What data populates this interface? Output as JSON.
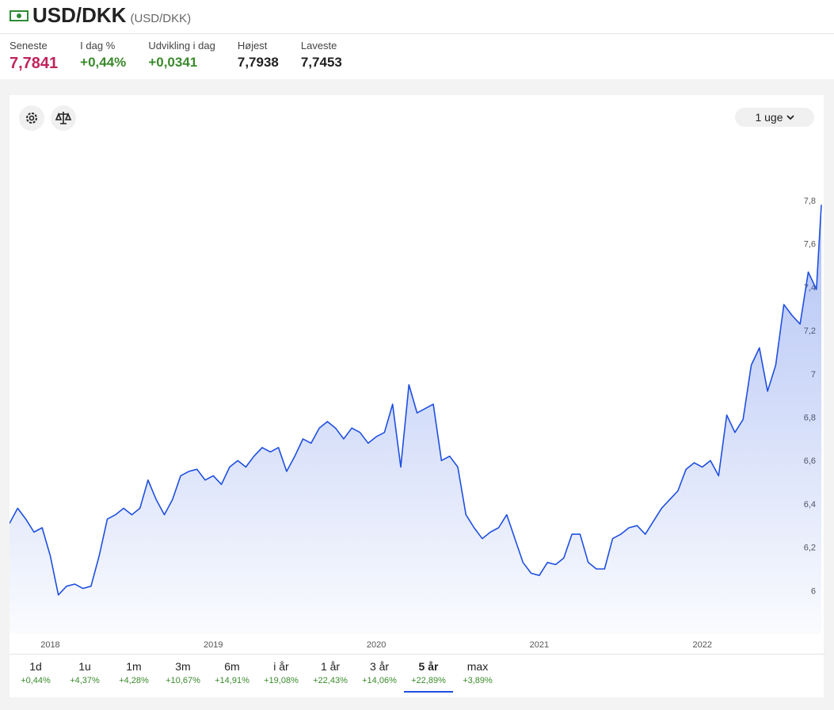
{
  "header": {
    "title": "USD/DKK",
    "subtitle": "(USD/DKK)"
  },
  "stats": [
    {
      "label": "Seneste",
      "value": "7,7841"
    },
    {
      "label": "I dag %",
      "value": "+0,44%"
    },
    {
      "label": "Udvikling i dag",
      "value": "+0,0341"
    },
    {
      "label": "Højest",
      "value": "7,7938"
    },
    {
      "label": "Laveste",
      "value": "7,7453"
    }
  ],
  "range_button": "1 uge",
  "chart_data": {
    "type": "line",
    "color": "#1f4fe0",
    "x": [
      2017.75,
      2017.8,
      2017.85,
      2017.9,
      2017.95,
      2018,
      2018.05,
      2018.1,
      2018.15,
      2018.2,
      2018.25,
      2018.3,
      2018.35,
      2018.4,
      2018.45,
      2018.5,
      2018.55,
      2018.6,
      2018.65,
      2018.7,
      2018.75,
      2018.8,
      2018.85,
      2018.9,
      2018.95,
      2019,
      2019.05,
      2019.1,
      2019.15,
      2019.2,
      2019.25,
      2019.3,
      2019.35,
      2019.4,
      2019.45,
      2019.5,
      2019.55,
      2019.6,
      2019.65,
      2019.7,
      2019.75,
      2019.8,
      2019.85,
      2019.9,
      2019.95,
      2020,
      2020.05,
      2020.1,
      2020.15,
      2020.2,
      2020.25,
      2020.3,
      2020.35,
      2020.4,
      2020.45,
      2020.5,
      2020.55,
      2020.6,
      2020.65,
      2020.7,
      2020.75,
      2020.8,
      2020.85,
      2020.9,
      2020.95,
      2021,
      2021.05,
      2021.1,
      2021.15,
      2021.2,
      2021.25,
      2021.3,
      2021.35,
      2021.4,
      2021.45,
      2021.5,
      2021.55,
      2021.6,
      2021.65,
      2021.7,
      2021.75,
      2021.8,
      2021.85,
      2021.9,
      2021.95,
      2022,
      2022.05,
      2022.1,
      2022.15,
      2022.2,
      2022.25,
      2022.3,
      2022.35,
      2022.4,
      2022.45,
      2022.5,
      2022.55,
      2022.6,
      2022.65,
      2022.7,
      2022.73
    ],
    "values": [
      6.31,
      6.38,
      6.33,
      6.27,
      6.29,
      6.16,
      5.98,
      6.02,
      6.03,
      6.01,
      6.02,
      6.16,
      6.33,
      6.35,
      6.38,
      6.35,
      6.38,
      6.51,
      6.42,
      6.35,
      6.42,
      6.53,
      6.55,
      6.56,
      6.51,
      6.53,
      6.49,
      6.57,
      6.6,
      6.57,
      6.62,
      6.66,
      6.64,
      6.66,
      6.55,
      6.62,
      6.7,
      6.68,
      6.75,
      6.78,
      6.75,
      6.7,
      6.75,
      6.73,
      6.68,
      6.71,
      6.73,
      6.86,
      6.57,
      6.95,
      6.82,
      6.84,
      6.86,
      6.6,
      6.62,
      6.57,
      6.35,
      6.29,
      6.24,
      6.27,
      6.29,
      6.35,
      6.24,
      6.13,
      6.08,
      6.07,
      6.13,
      6.12,
      6.15,
      6.26,
      6.26,
      6.13,
      6.1,
      6.1,
      6.24,
      6.26,
      6.29,
      6.3,
      6.26,
      6.32,
      6.38,
      6.42,
      6.46,
      6.56,
      6.59,
      6.57,
      6.6,
      6.53,
      6.81,
      6.73,
      6.79,
      7.04,
      7.12,
      6.92,
      7.04,
      7.32,
      7.27,
      7.23,
      7.47,
      7.39,
      7.78
    ],
    "xlim": [
      2017.75,
      2022.73
    ],
    "xticks": [
      2018,
      2019,
      2020,
      2021,
      2022
    ],
    "ylim": [
      5.8,
      8.1
    ],
    "yticks": [
      6,
      {
        "value": 6.2,
        "label": "6,2"
      },
      {
        "value": 6.4,
        "label": "6,4"
      },
      {
        "value": 6.6,
        "label": "6,6"
      },
      {
        "value": 6.8,
        "label": "6,8"
      },
      7,
      {
        "value": 7.2,
        "label": "7,2"
      },
      {
        "value": 7.4,
        "label": "7,4"
      },
      {
        "value": 7.6,
        "label": "7,6"
      },
      {
        "value": 7.8,
        "label": "7,8"
      }
    ]
  },
  "periods": [
    {
      "label": "1d",
      "change": "+0,44%"
    },
    {
      "label": "1u",
      "change": "+4,37%"
    },
    {
      "label": "1m",
      "change": "+4,28%"
    },
    {
      "label": "3m",
      "change": "+10,67%"
    },
    {
      "label": "6m",
      "change": "+14,91%"
    },
    {
      "label": "i år",
      "change": "+19,08%"
    },
    {
      "label": "1 år",
      "change": "+22,43%"
    },
    {
      "label": "3 år",
      "change": "+14,06%"
    },
    {
      "label": "5 år",
      "change": "+22,89%",
      "selected": true
    },
    {
      "label": "max",
      "change": "+3,89%"
    }
  ]
}
